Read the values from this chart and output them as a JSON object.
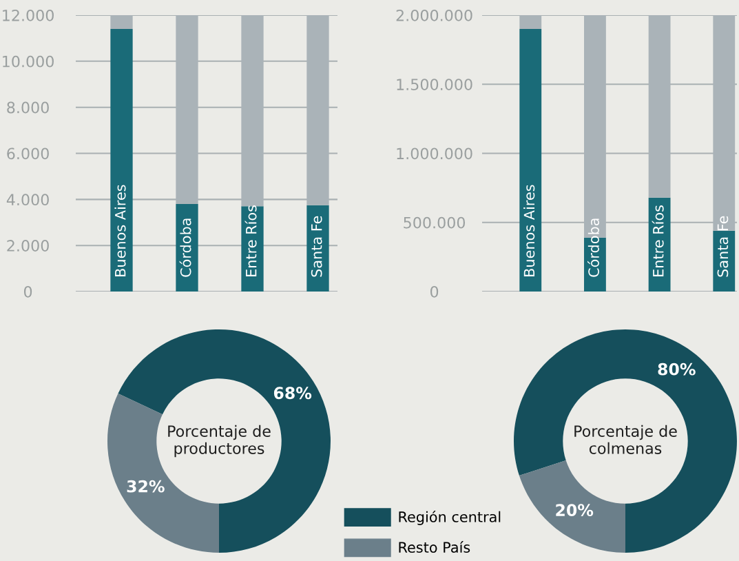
{
  "chart_data": [
    {
      "type": "bar",
      "categories": [
        "Buenos Aires",
        "Córdoba",
        "Entre Ríos",
        "Santa Fe"
      ],
      "ylim": [
        0,
        12000
      ],
      "yticks": [
        {
          "value": 0,
          "label": "0"
        },
        {
          "value": 2000,
          "label": "2.000"
        },
        {
          "value": 4000,
          "label": "4.000"
        },
        {
          "value": 6000,
          "label": "6.000"
        },
        {
          "value": 8000,
          "label": "8.000"
        },
        {
          "value": 10000,
          "label": "10.000"
        },
        {
          "value": 12000,
          "label": "12.000"
        }
      ],
      "grid": "y",
      "series": [
        {
          "color": "#1a6b78",
          "values": [
            11400,
            3800,
            3700,
            3750
          ]
        },
        {
          "color": "#aab3b8",
          "values": [
            600,
            8200,
            8300,
            8250
          ]
        }
      ],
      "stacked": true
    },
    {
      "type": "donut",
      "title": "Porcentaje de productores",
      "categories": [
        "Región central",
        "Resto País"
      ],
      "values": [
        68,
        32
      ],
      "colors": [
        "#154f5c",
        "#6b7f8a"
      ],
      "value_labels": [
        "68%",
        "32%"
      ],
      "legend": "bottom right"
    },
    {
      "type": "bar",
      "categories": [
        "Buenos Aires",
        "Córdoba",
        "Entre Ríos",
        "Santa Fe"
      ],
      "ylim": [
        0,
        2000000
      ],
      "yticks": [
        {
          "value": 0,
          "label": "0"
        },
        {
          "value": 500000,
          "label": "500.000"
        },
        {
          "value": 1000000,
          "label": "1.000.000"
        },
        {
          "value": 1500000,
          "label": "1.500.000"
        },
        {
          "value": 2000000,
          "label": "2.000.000"
        }
      ],
      "grid": "y",
      "series": [
        {
          "color": "#1a6b78",
          "values": [
            1900000,
            390000,
            680000,
            440000
          ]
        },
        {
          "color": "#aab3b8",
          "values": [
            100000,
            1610000,
            1320000,
            1560000
          ]
        }
      ],
      "stacked": true
    },
    {
      "type": "donut",
      "title": "Porcentaje de colmenas",
      "categories": [
        null,
        null
      ],
      "values": [
        80,
        20
      ],
      "colors": [
        "#154f5c",
        "#6b7f8a"
      ],
      "value_labels": [
        "80%",
        "20%"
      ]
    }
  ]
}
